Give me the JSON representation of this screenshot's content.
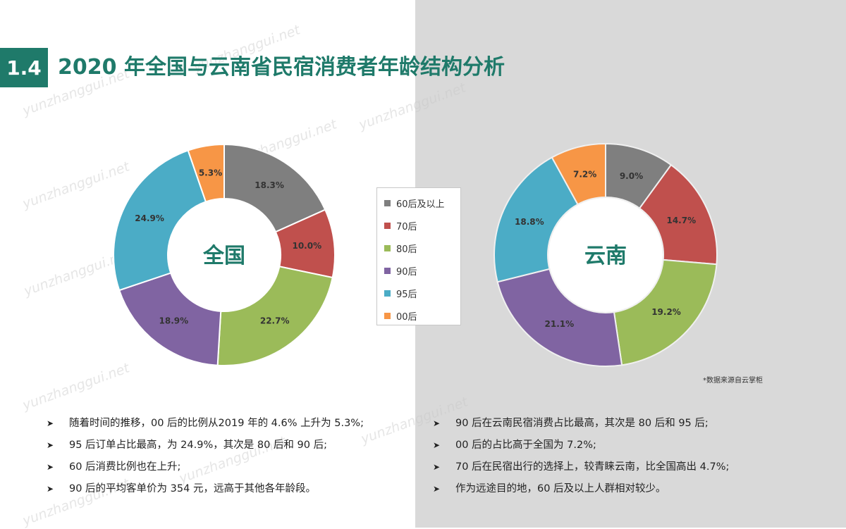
{
  "header": {
    "section_number": "1.4",
    "title": "2020 年全国与云南省民宿消费者年龄结构分析"
  },
  "chart_data": [
    {
      "type": "pie",
      "donut": true,
      "center_label": "全国",
      "categories": [
        "60后及以上",
        "70后",
        "80后",
        "90后",
        "95后",
        "00后"
      ],
      "values": [
        18.3,
        10.0,
        22.7,
        18.9,
        24.9,
        5.3
      ],
      "labels": [
        "18.3%",
        "10.0%",
        "22.7%",
        "18.9%",
        "24.9%",
        "5.3%"
      ]
    },
    {
      "type": "pie",
      "donut": true,
      "center_label": "云南",
      "categories": [
        "60后及以上",
        "70后",
        "80后",
        "90后",
        "95后",
        "00后"
      ],
      "values": [
        9.0,
        14.7,
        19.2,
        21.1,
        18.8,
        7.2
      ],
      "labels": [
        "9.0%",
        "14.7%",
        "19.2%",
        "21.1%",
        "18.8%",
        "7.2%"
      ]
    }
  ],
  "legend": {
    "items": [
      {
        "label": "60后及以上",
        "color": "#7f7f7f"
      },
      {
        "label": "70后",
        "color": "#c0504d"
      },
      {
        "label": "80后",
        "color": "#9bbb59"
      },
      {
        "label": "90后",
        "color": "#8064a2"
      },
      {
        "label": "95后",
        "color": "#4bacc6"
      },
      {
        "label": "00后",
        "color": "#f79646"
      }
    ]
  },
  "source_note": "*数据来源自云掌柜",
  "bullets_left": [
    "随着时间的推移，00 后的比例从2019 年的 4.6% 上升为 5.3%;",
    "95 后订单占比最高，为 24.9%，其次是 80 后和 90 后;",
    "60 后消费比例也在上升;",
    "90 后的平均客单价为 354 元，远高于其他各年龄段。"
  ],
  "bullets_right": [
    "90 后在云南民宿消费占比最高，其次是 80 后和 95 后;",
    "00 后的占比高于全国为 7.2%;",
    "70 后在民宿出行的选择上，较青睐云南，比全国高出 4.7%;",
    "作为远途目的地，60 后及以上人群相对较少。"
  ],
  "bullet_marker": "➤",
  "watermark_text": "yunzhanggui.net"
}
